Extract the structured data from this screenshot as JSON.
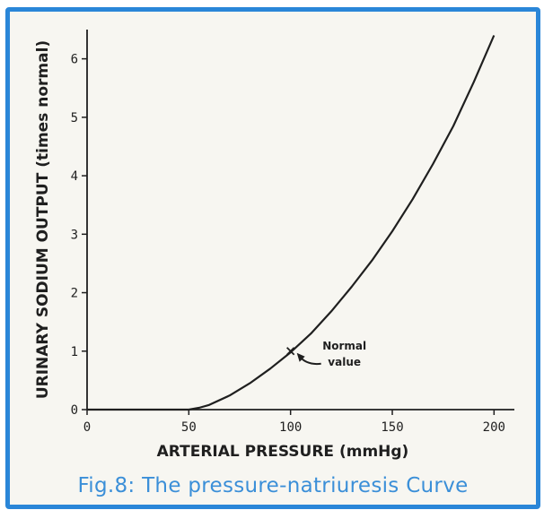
{
  "caption": "Fig.8: The pressure-natriuresis Curve",
  "colors": {
    "frame": "#2a86d8",
    "caption": "#3b8fd8",
    "ink": "#1f1f1f",
    "background": "#f7f6f1"
  },
  "chart_data": {
    "type": "line",
    "title": "",
    "xlabel": "ARTERIAL PRESSURE (mmHg)",
    "ylabel": "URINARY SODIUM OUTPUT (times normal)",
    "xlim": [
      0,
      210
    ],
    "ylim": [
      0,
      6.5
    ],
    "xticks": [
      0,
      50,
      100,
      150,
      200
    ],
    "yticks": [
      0,
      1,
      2,
      3,
      4,
      5,
      6
    ],
    "grid": false,
    "series": [
      {
        "x": [
          0,
          25,
          40,
          50,
          55,
          60,
          70,
          80,
          90,
          100,
          110,
          120,
          130,
          140,
          150,
          160,
          170,
          180,
          190,
          200
        ],
        "values": [
          0,
          0,
          0,
          0,
          0.03,
          0.08,
          0.24,
          0.45,
          0.7,
          0.98,
          1.3,
          1.68,
          2.1,
          2.55,
          3.05,
          3.6,
          4.2,
          4.85,
          5.6,
          6.4
        ]
      }
    ],
    "annotations": [
      {
        "text": [
          "Normal",
          "value"
        ],
        "x": 100,
        "y": 1.0,
        "marker": "x"
      }
    ]
  }
}
